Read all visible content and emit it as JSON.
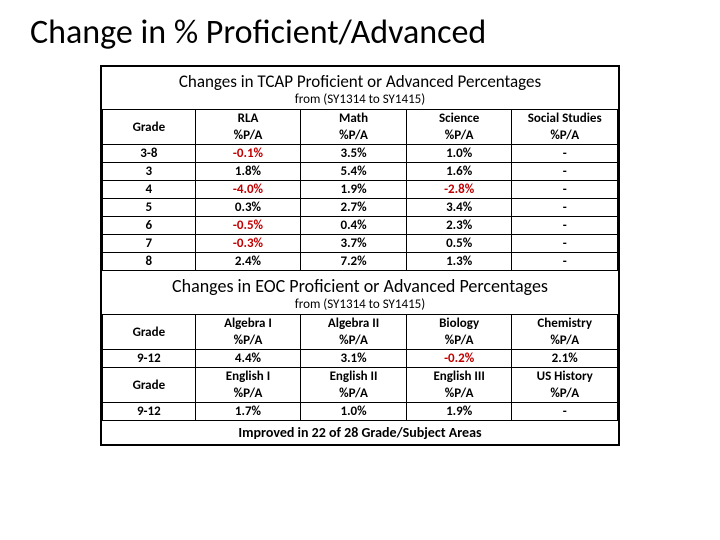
{
  "title": "Change in % Proficient/Advanced",
  "tcap": {
    "heading": "Changes in TCAP Proficient or Advanced Percentages",
    "sub": "from (SY1314 to SY1415)",
    "gradeLabel": "Grade",
    "columns": [
      "RLA",
      "Math",
      "Science",
      "Social Studies"
    ],
    "metricLabel": "%P/A",
    "rows": [
      {
        "grade": "3-8",
        "vals": [
          {
            "t": "-0.1%",
            "neg": true
          },
          {
            "t": "3.5%"
          },
          {
            "t": "1.0%"
          },
          {
            "t": "-"
          }
        ]
      },
      {
        "grade": "3",
        "vals": [
          {
            "t": "1.8%"
          },
          {
            "t": "5.4%"
          },
          {
            "t": "1.6%"
          },
          {
            "t": "-"
          }
        ]
      },
      {
        "grade": "4",
        "vals": [
          {
            "t": "-4.0%",
            "neg": true
          },
          {
            "t": "1.9%"
          },
          {
            "t": "-2.8%",
            "neg": true
          },
          {
            "t": "-"
          }
        ]
      },
      {
        "grade": "5",
        "vals": [
          {
            "t": "0.3%"
          },
          {
            "t": "2.7%"
          },
          {
            "t": "3.4%"
          },
          {
            "t": "-"
          }
        ]
      },
      {
        "grade": "6",
        "vals": [
          {
            "t": "-0.5%",
            "neg": true
          },
          {
            "t": "0.4%"
          },
          {
            "t": "2.3%"
          },
          {
            "t": "-"
          }
        ]
      },
      {
        "grade": "7",
        "vals": [
          {
            "t": "-0.3%",
            "neg": true
          },
          {
            "t": "3.7%"
          },
          {
            "t": "0.5%"
          },
          {
            "t": "-"
          }
        ]
      },
      {
        "grade": "8",
        "vals": [
          {
            "t": "2.4%"
          },
          {
            "t": "7.2%"
          },
          {
            "t": "1.3%"
          },
          {
            "t": "-"
          }
        ]
      }
    ]
  },
  "eoc": {
    "heading": "Changes in EOC Proficient or Advanced Percentages",
    "sub": "from (SY1314 to SY1415)",
    "gradeLabel": "Grade",
    "metricLabel": "%P/A",
    "block1": {
      "columns": [
        "Algebra I",
        "Algebra II",
        "Biology",
        "Chemistry"
      ],
      "grade": "9-12",
      "vals": [
        {
          "t": "4.4%"
        },
        {
          "t": "3.1%"
        },
        {
          "t": "-0.2%",
          "neg": true
        },
        {
          "t": "2.1%"
        }
      ]
    },
    "block2": {
      "columns": [
        "English I",
        "English II",
        "English III",
        "US History"
      ],
      "grade": "9-12",
      "vals": [
        {
          "t": "1.7%"
        },
        {
          "t": "1.0%"
        },
        {
          "t": "1.9%"
        },
        {
          "t": "-"
        }
      ]
    }
  },
  "footer": "Improved in 22 of 28 Grade/Subject Areas",
  "colors": {
    "neg": "#c00000",
    "pos": "#000000",
    "border": "#000000",
    "bg": "#ffffff"
  }
}
